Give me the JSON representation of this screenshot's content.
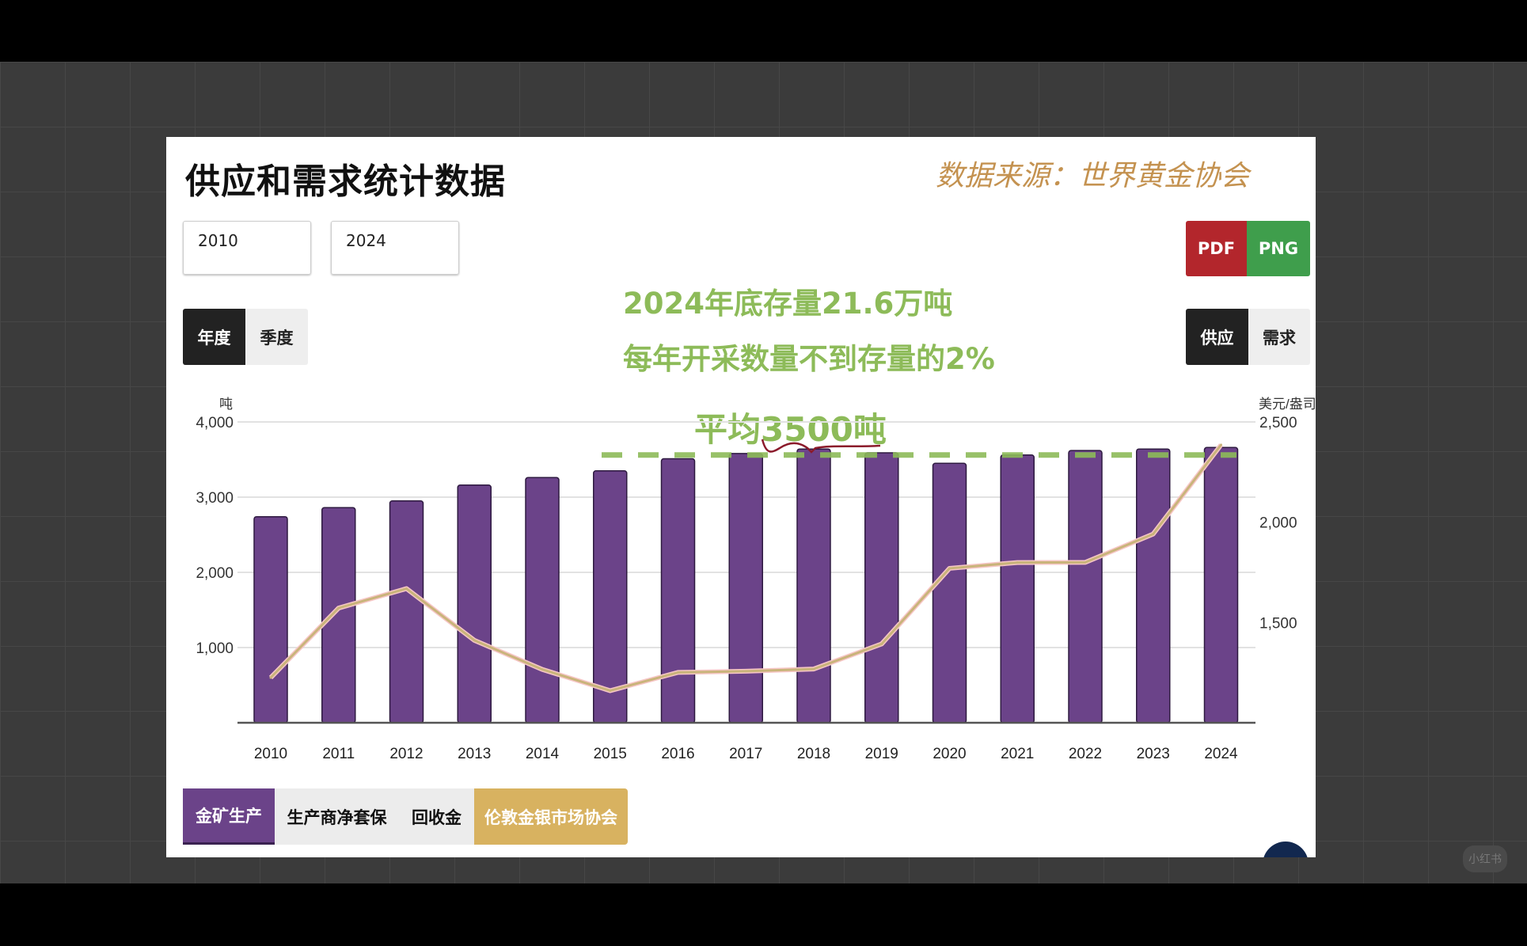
{
  "header": {
    "title": "供应和需求统计数据",
    "source": "数据来源：世界黄金协会"
  },
  "filters": {
    "start_year": "2010",
    "end_year": "2024"
  },
  "export": {
    "pdf_label": "PDF",
    "png_label": "PNG",
    "pdf_color": "#b3262c",
    "png_color": "#3f9e4c"
  },
  "period_toggle": {
    "annual": "年度",
    "quarterly": "季度",
    "active": "年度"
  },
  "type_toggle": {
    "supply": "供应",
    "demand": "需求",
    "active": "供应"
  },
  "annotations": {
    "line1": "2024年底存量21.6万吨",
    "line2": "每年开采数量不到存量的2%",
    "average_label": "平均3500吨",
    "average_level": 3560,
    "color": "#8dbb59"
  },
  "legend": {
    "items": [
      {
        "label": "金矿生产",
        "active": true,
        "color": "#6b4389"
      },
      {
        "label": "生产商净套保",
        "active": false
      },
      {
        "label": "回收金",
        "active": false
      },
      {
        "label": "伦敦金银市场协会",
        "active": true,
        "color": "#d8b260"
      }
    ]
  },
  "watermark": "小红书",
  "chart_data": {
    "type": "bar",
    "categories": [
      "2010",
      "2011",
      "2012",
      "2013",
      "2014",
      "2015",
      "2016",
      "2017",
      "2018",
      "2019",
      "2020",
      "2021",
      "2022",
      "2023",
      "2024"
    ],
    "ylabel": "吨",
    "ylim": [
      0,
      4000
    ],
    "yticks": [
      "1,000",
      "2,000",
      "3,000",
      "4,000"
    ],
    "y2label": "美元/盎司",
    "y2lim": [
      1000,
      2500
    ],
    "y2ticks": [
      "1,500",
      "2,000",
      "2,500"
    ],
    "grid": true,
    "series": [
      {
        "name": "金矿生产",
        "type": "bar",
        "axis": "left",
        "color": "#6b4389",
        "values": [
          2740,
          2860,
          2950,
          3160,
          3260,
          3350,
          3510,
          3580,
          3640,
          3590,
          3450,
          3560,
          3620,
          3640,
          3660
        ]
      },
      {
        "name": "伦敦金银市场协会",
        "type": "line",
        "axis": "right",
        "color": "#c9b47a",
        "values": [
          1225,
          1572,
          1669,
          1411,
          1266,
          1160,
          1251,
          1257,
          1268,
          1393,
          1770,
          1799,
          1800,
          1941,
          2386
        ]
      }
    ]
  }
}
